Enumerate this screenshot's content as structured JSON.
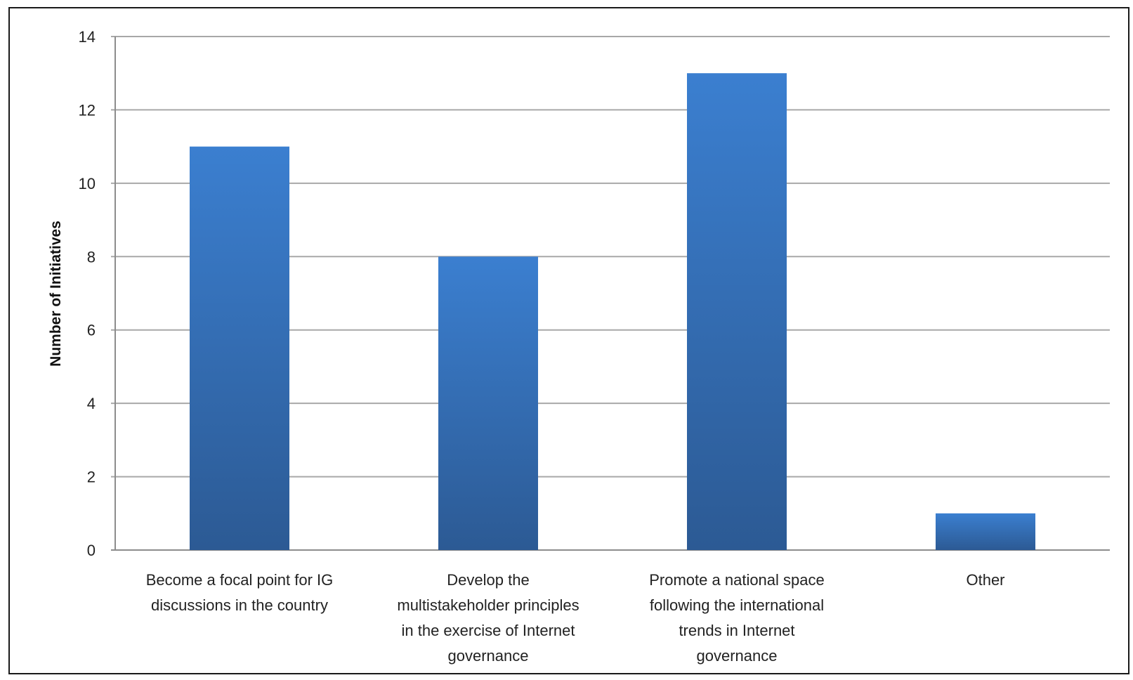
{
  "chart_data": {
    "type": "bar",
    "title": "",
    "xlabel": "",
    "ylabel": "Number of Initiatives",
    "ylim": [
      0,
      14
    ],
    "yticks": [
      0,
      2,
      4,
      6,
      8,
      10,
      12,
      14
    ],
    "grid": true,
    "legend": "none",
    "categories": [
      [
        "Become a focal point for IG",
        "discussions in the country"
      ],
      [
        "Develop the",
        "multistakeholder principles",
        "in the exercise of Internet",
        "governance"
      ],
      [
        "Promote a national space",
        "following the international",
        "trends in Internet",
        "governance"
      ],
      [
        "Other"
      ]
    ],
    "values": [
      11,
      8,
      13,
      1
    ],
    "colors": {
      "bar_top": "#3b7fd0",
      "bar_bottom": "#2c5a94",
      "grid": "#a8a8a8",
      "axis": "#8c8c8c"
    }
  }
}
